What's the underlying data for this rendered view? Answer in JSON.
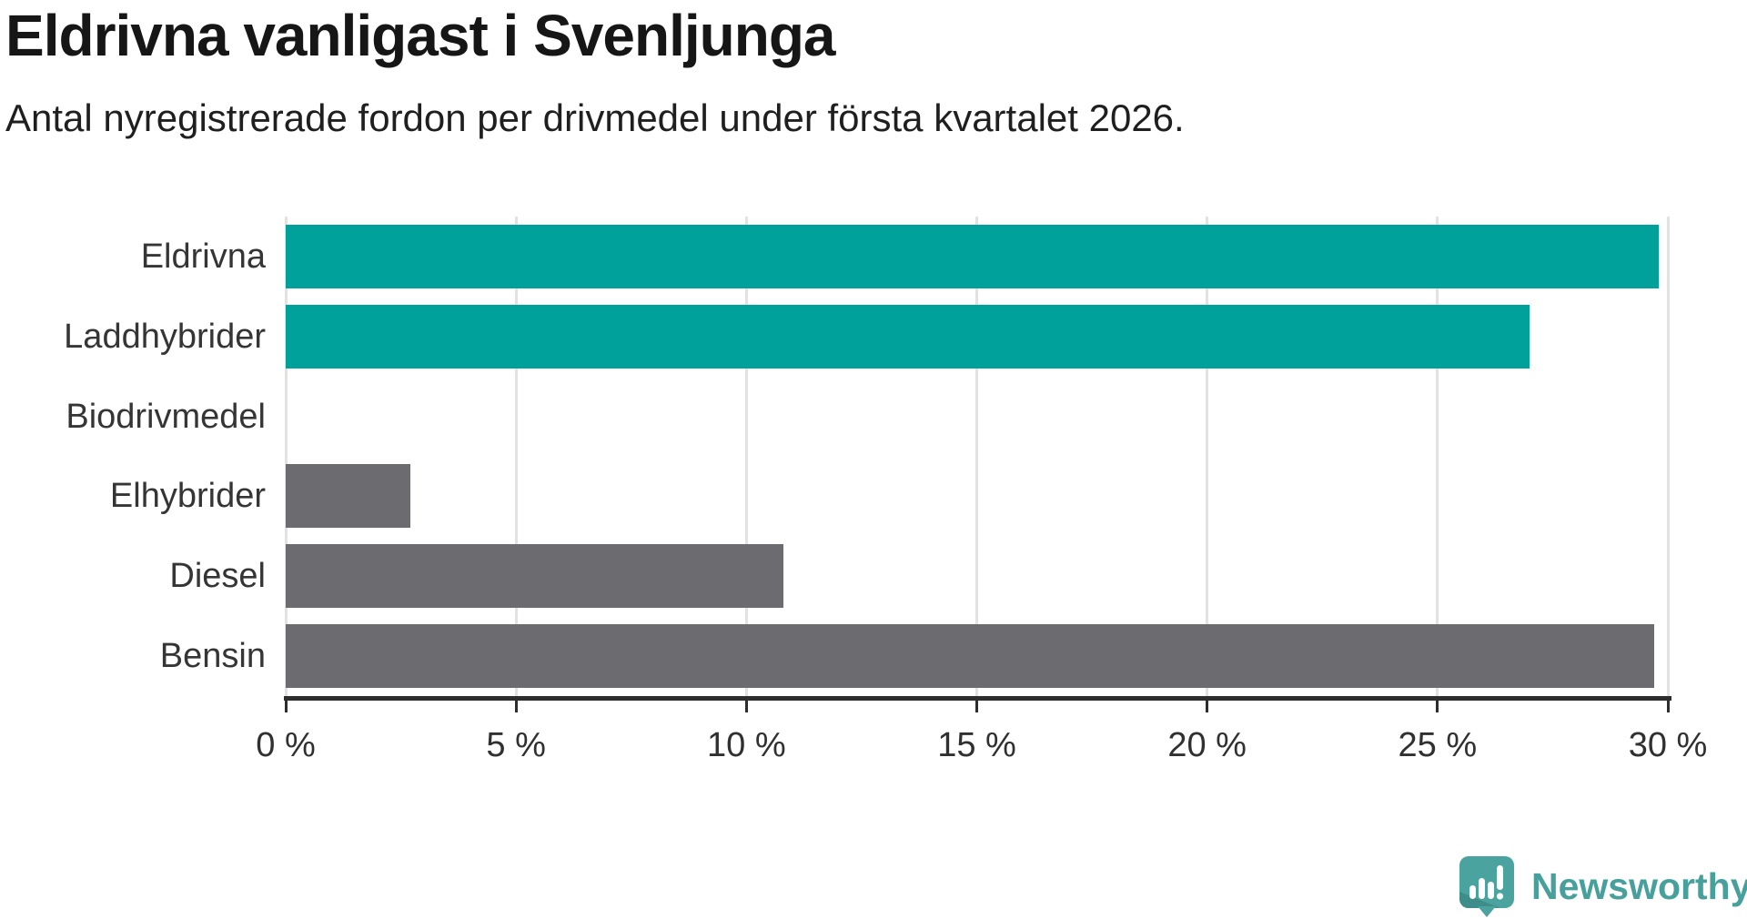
{
  "header": {
    "title": "Eldrivna vanligast i Svenljunga",
    "subtitle": "Antal nyregistrerade fordon per drivmedel under första kvartalet 2026."
  },
  "chart_data": {
    "type": "bar",
    "orientation": "horizontal",
    "title": "Eldrivna vanligast i Svenljunga",
    "subtitle": "Antal nyregistrerade fordon per drivmedel under första kvartalet 2026.",
    "categories": [
      "Eldrivna",
      "Laddhybrider",
      "Biodrivmedel",
      "Elhybrider",
      "Diesel",
      "Bensin"
    ],
    "values": [
      29.8,
      27.0,
      0,
      2.7,
      10.8,
      29.7
    ],
    "unit": "%",
    "bar_color_keys": [
      "teal",
      "teal",
      "gray",
      "gray",
      "gray",
      "gray"
    ],
    "palette": {
      "teal": "#00a19a",
      "gray": "#6b6b70"
    },
    "xlim": [
      0,
      30
    ],
    "x_tick_labels": [
      "0 %",
      "5 %",
      "10 %",
      "15 %",
      "20 %",
      "25 %",
      "30 %"
    ],
    "grid": "vertical-only",
    "legend": "none",
    "colors": {
      "gridline": "#e2e2e2",
      "axis": "#2d2d2d",
      "label_text": "#353535"
    }
  },
  "footer": {
    "brand": "Newsworthy",
    "brand_text_color": "#47a09b",
    "brand_icon": "speech-bubble-bar-chart-icon",
    "brand_icon_colors": {
      "bubble": "#4ba3a0",
      "fold": "#3f8d8a",
      "glyph": "#ffffff"
    }
  }
}
